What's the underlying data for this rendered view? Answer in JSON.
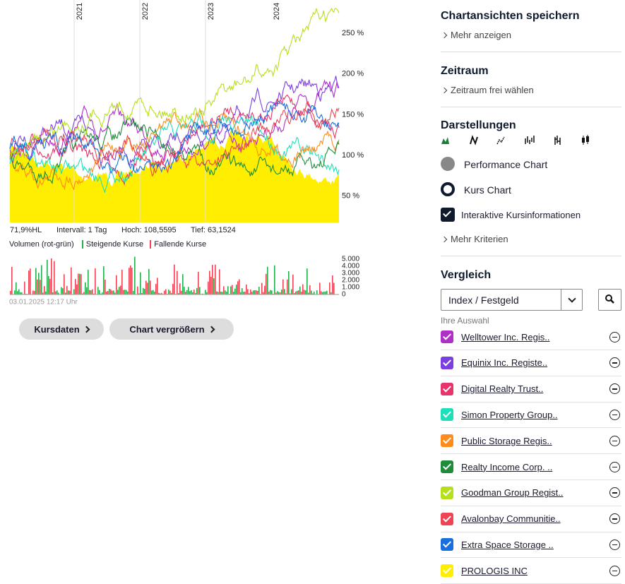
{
  "chart": {
    "x_labels": [
      "2021",
      "2022",
      "2023",
      "2024"
    ],
    "y_labels": [
      "250 %",
      "200 %",
      "150 %",
      "100 %",
      "50 %"
    ],
    "info": [
      "71,9%HL",
      "Intervall: 1 Tag",
      "Hoch: 108,5595",
      "Tief: 63,1524"
    ],
    "volume_title": "Volumen (rot-grün)",
    "volume_up": "Steigende Kurse",
    "volume_down": "Fallende Kurse",
    "volume_up_color": "#22b14c",
    "volume_down_color": "#ef4455",
    "volume_labels": [
      "5.000",
      "4.000",
      "3.000",
      "2.000",
      "1.000",
      "0"
    ],
    "timestamp": "03.01.2025 12:17 Uhr"
  },
  "buttons": [
    "Kursdaten",
    "Chart vergrößern"
  ],
  "sidebar": {
    "save_title": "Chartansichten speichern",
    "save_link": "Mehr anzeigen",
    "period_title": "Zeitraum",
    "period_link": "Zeitraum frei wählen",
    "display_title": "Darstellungen",
    "options": [
      "Performance Chart",
      "Kurs Chart"
    ],
    "checkbox": "Interaktive Kursinformationen",
    "more_link": "Mehr Kriterien",
    "compare_title": "Vergleich",
    "select": "Index / Festgeld",
    "selection_label": "Ihre Auswahl",
    "selection": [
      {
        "name": "Welltower Inc. Regis..",
        "color": "#b02fc8"
      },
      {
        "name": "Equinix Inc. Registe..",
        "color": "#7b3fe0"
      },
      {
        "name": "Digital Realty Trust..",
        "color": "#e8336b"
      },
      {
        "name": "Simon Property Group..",
        "color": "#1de0b8"
      },
      {
        "name": "Public Storage Regis..",
        "color": "#ff8c1a"
      },
      {
        "name": "Realty Income Corp. ..",
        "color": "#1e8c3a"
      },
      {
        "name": "Goodman Group Regist..",
        "color": "#b6e01a"
      },
      {
        "name": "Avalonbay Communitie..",
        "color": "#ef4455"
      },
      {
        "name": "Extra Space Storage ..",
        "color": "#1a6fe0"
      },
      {
        "name": "PROLOGIS INC",
        "color": "#ffee00"
      }
    ]
  }
}
